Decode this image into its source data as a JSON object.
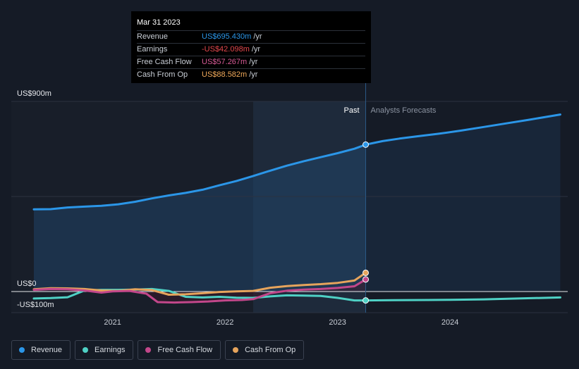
{
  "tooltip": {
    "date": "Mar 31 2023",
    "rows": [
      {
        "label": "Revenue",
        "value": "US$695.430m",
        "unit": "/yr",
        "color": "#2b96e8"
      },
      {
        "label": "Earnings",
        "value": "-US$42.098m",
        "unit": "/yr",
        "color": "#e5484d"
      },
      {
        "label": "Free Cash Flow",
        "value": "US$57.267m",
        "unit": "/yr",
        "color": "#d65a95"
      },
      {
        "label": "Cash From Op",
        "value": "US$88.582m",
        "unit": "/yr",
        "color": "#f0a95a"
      }
    ]
  },
  "legend": [
    {
      "label": "Revenue",
      "color": "#2b96e8"
    },
    {
      "label": "Earnings",
      "color": "#4fd1c5"
    },
    {
      "label": "Free Cash Flow",
      "color": "#c2478a"
    },
    {
      "label": "Cash From Op",
      "color": "#e6a45c"
    }
  ],
  "chart_data": {
    "type": "line",
    "title": "",
    "ylim": [
      -100,
      900
    ],
    "y_tick_labels": [
      "US$900m",
      "US$0",
      "-US$100m"
    ],
    "x_tick_labels": [
      "2021",
      "2022",
      "2023",
      "2024"
    ],
    "region_labels": {
      "past": "Past",
      "forecast": "Analysts Forecasts"
    },
    "x_range": [
      2020.2,
      2024.98
    ],
    "past_end": 2023.25,
    "highlight_start": 2022.25,
    "series": [
      {
        "name": "Revenue",
        "color": "#2b96e8",
        "points": [
          [
            2020.3,
            389
          ],
          [
            2020.45,
            390
          ],
          [
            2020.6,
            398
          ],
          [
            2020.75,
            402
          ],
          [
            2020.9,
            406
          ],
          [
            2021.05,
            413
          ],
          [
            2021.2,
            425
          ],
          [
            2021.35,
            441
          ],
          [
            2021.5,
            455
          ],
          [
            2021.65,
            467
          ],
          [
            2021.8,
            482
          ],
          [
            2021.95,
            503
          ],
          [
            2022.1,
            523
          ],
          [
            2022.25,
            547
          ],
          [
            2022.4,
            572
          ],
          [
            2022.55,
            596
          ],
          [
            2022.7,
            617
          ],
          [
            2022.85,
            636
          ],
          [
            2023.0,
            655
          ],
          [
            2023.15,
            676
          ],
          [
            2023.25,
            695.43
          ],
          [
            2023.4,
            712
          ],
          [
            2023.55,
            724
          ],
          [
            2023.7,
            734
          ],
          [
            2023.9,
            747
          ],
          [
            2024.1,
            762
          ],
          [
            2024.3,
            779
          ],
          [
            2024.5,
            796
          ],
          [
            2024.7,
            813
          ],
          [
            2024.98,
            838
          ]
        ]
      },
      {
        "name": "Earnings",
        "color": "#4fd1c5",
        "points": [
          [
            2020.3,
            -33
          ],
          [
            2020.45,
            -31
          ],
          [
            2020.6,
            -27
          ],
          [
            2020.75,
            5
          ],
          [
            2020.9,
            8
          ],
          [
            2021.05,
            8
          ],
          [
            2021.2,
            9
          ],
          [
            2021.35,
            12
          ],
          [
            2021.5,
            3
          ],
          [
            2021.65,
            -25
          ],
          [
            2021.8,
            -28
          ],
          [
            2021.95,
            -25
          ],
          [
            2022.1,
            -29
          ],
          [
            2022.25,
            -30
          ],
          [
            2022.4,
            -23
          ],
          [
            2022.55,
            -18
          ],
          [
            2022.7,
            -19
          ],
          [
            2022.85,
            -21
          ],
          [
            2023.0,
            -30
          ],
          [
            2023.15,
            -42
          ],
          [
            2023.25,
            -42.1
          ],
          [
            2023.5,
            -41
          ],
          [
            2023.8,
            -40
          ],
          [
            2024.0,
            -39
          ],
          [
            2024.3,
            -37
          ],
          [
            2024.6,
            -33
          ],
          [
            2024.98,
            -28
          ]
        ]
      },
      {
        "name": "Free Cash Flow",
        "color": "#c2478a",
        "points": [
          [
            2020.3,
            8
          ],
          [
            2020.45,
            12
          ],
          [
            2020.6,
            11
          ],
          [
            2020.75,
            5
          ],
          [
            2020.9,
            -5
          ],
          [
            2021.0,
            1
          ],
          [
            2021.15,
            3
          ],
          [
            2021.3,
            -10
          ],
          [
            2021.4,
            -50
          ],
          [
            2021.55,
            -52
          ],
          [
            2021.7,
            -50
          ],
          [
            2021.85,
            -47
          ],
          [
            2022.0,
            -42
          ],
          [
            2022.15,
            -40
          ],
          [
            2022.25,
            -36
          ],
          [
            2022.4,
            -8
          ],
          [
            2022.55,
            4
          ],
          [
            2022.7,
            9
          ],
          [
            2022.85,
            12
          ],
          [
            2023.0,
            17
          ],
          [
            2023.15,
            25
          ],
          [
            2023.25,
            57.27
          ]
        ]
      },
      {
        "name": "Cash From Op",
        "color": "#e6a45c",
        "points": [
          [
            2020.3,
            11
          ],
          [
            2020.45,
            16
          ],
          [
            2020.6,
            15
          ],
          [
            2020.75,
            12
          ],
          [
            2020.9,
            5
          ],
          [
            2021.05,
            3
          ],
          [
            2021.2,
            11
          ],
          [
            2021.35,
            7
          ],
          [
            2021.5,
            -15
          ],
          [
            2021.65,
            -13
          ],
          [
            2021.8,
            -8
          ],
          [
            2021.95,
            -2
          ],
          [
            2022.1,
            1
          ],
          [
            2022.25,
            3
          ],
          [
            2022.4,
            18
          ],
          [
            2022.55,
            26
          ],
          [
            2022.7,
            31
          ],
          [
            2022.85,
            35
          ],
          [
            2023.0,
            41
          ],
          [
            2023.15,
            52
          ],
          [
            2023.25,
            88.58
          ]
        ]
      }
    ]
  }
}
